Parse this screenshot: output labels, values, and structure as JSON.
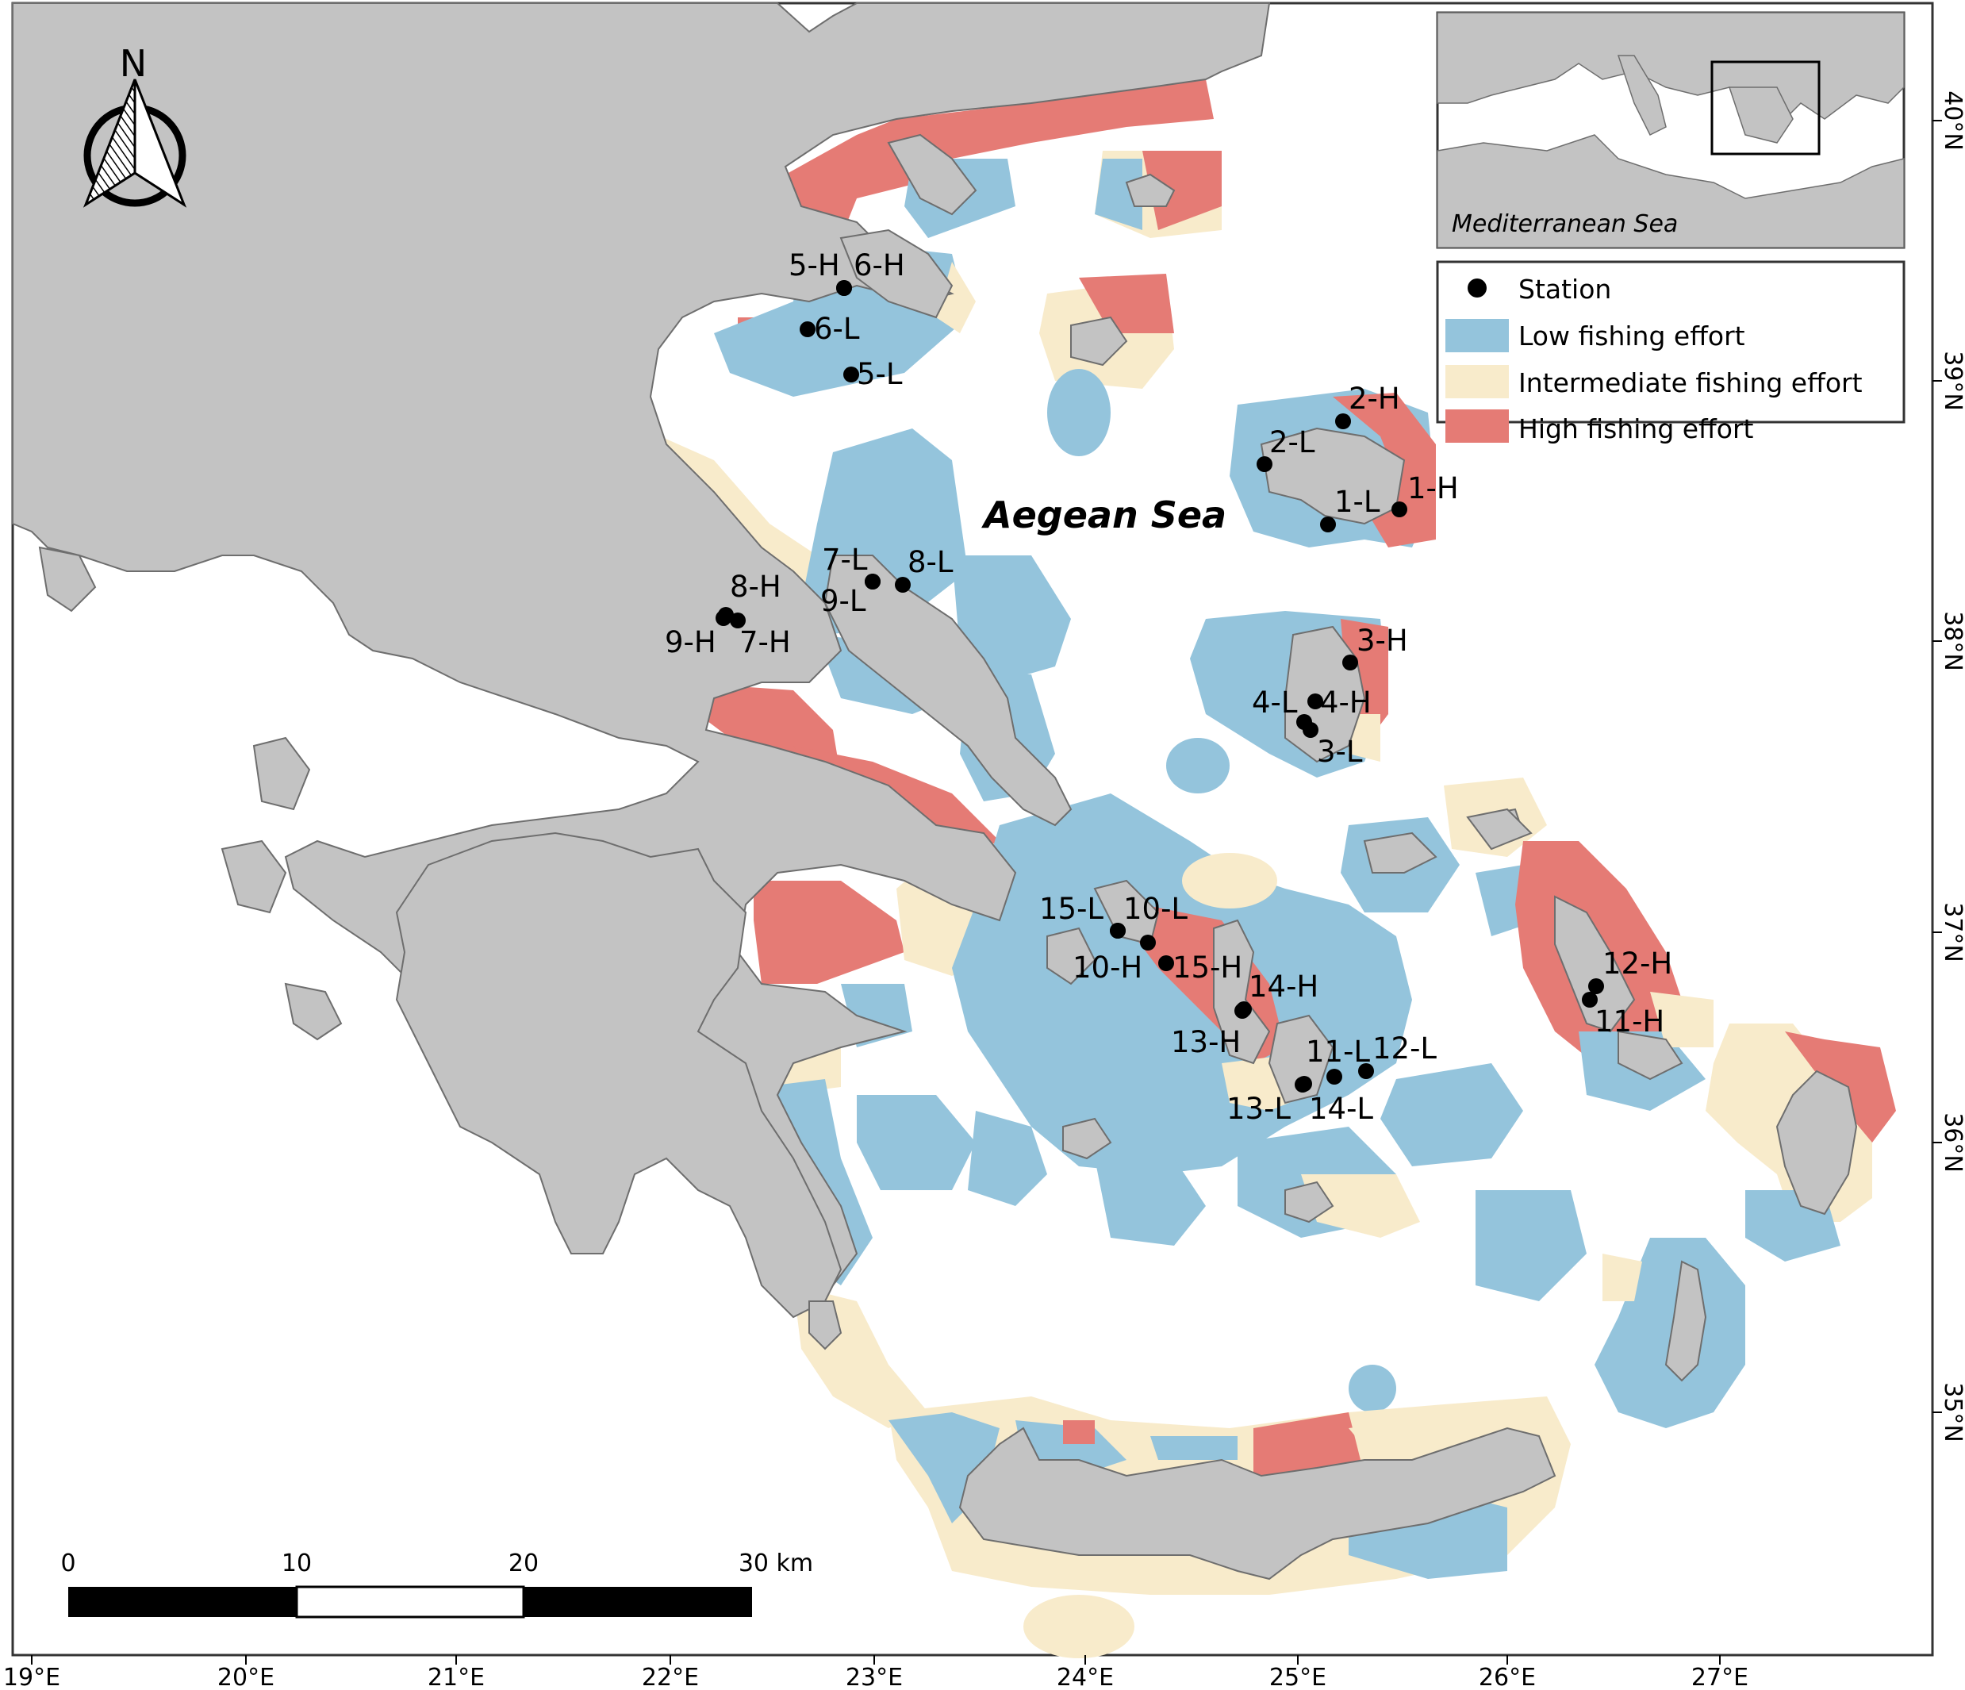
{
  "colors": {
    "land": "#c3c3c3",
    "low": "#94c4dc",
    "intermediate": "#f8ebcb",
    "high": "#e57b75",
    "station": "#000000"
  },
  "map": {
    "sea_label": "Aegean Sea",
    "inset_label": "Mediterranean Sea",
    "north_label": "N"
  },
  "legend": {
    "station": "Station",
    "low": "Low fishing effort",
    "intermediate": "Intermediate fishing effort",
    "high": "High fishing effort"
  },
  "scale_bar": {
    "labels": [
      "0",
      "10",
      "20",
      "30 km"
    ]
  },
  "axes": {
    "longitude_ticks": [
      "19°E",
      "20°E",
      "21°E",
      "22°E",
      "23°E",
      "24°E",
      "25°E",
      "26°E",
      "27°E"
    ],
    "latitude_ticks": [
      "40°N",
      "39°N",
      "38°N",
      "37°N",
      "36°N",
      "35°N"
    ]
  },
  "stations": [
    {
      "label": "1-H",
      "effort": "high"
    },
    {
      "label": "1-L",
      "effort": "low"
    },
    {
      "label": "2-H",
      "effort": "high"
    },
    {
      "label": "2-L",
      "effort": "low"
    },
    {
      "label": "3-H",
      "effort": "high"
    },
    {
      "label": "3-L",
      "effort": "low"
    },
    {
      "label": "4-H",
      "effort": "high"
    },
    {
      "label": "4-L",
      "effort": "low"
    },
    {
      "label": "5-H",
      "effort": "high"
    },
    {
      "label": "5-L",
      "effort": "low"
    },
    {
      "label": "6-H",
      "effort": "high"
    },
    {
      "label": "6-L",
      "effort": "low"
    },
    {
      "label": "7-H",
      "effort": "high"
    },
    {
      "label": "7-L",
      "effort": "low"
    },
    {
      "label": "8-H",
      "effort": "high"
    },
    {
      "label": "8-L",
      "effort": "low"
    },
    {
      "label": "9-H",
      "effort": "high"
    },
    {
      "label": "9-L",
      "effort": "low"
    },
    {
      "label": "10-H",
      "effort": "high"
    },
    {
      "label": "10-L",
      "effort": "low"
    },
    {
      "label": "11-H",
      "effort": "high"
    },
    {
      "label": "11-L",
      "effort": "low"
    },
    {
      "label": "12-H",
      "effort": "high"
    },
    {
      "label": "12-L",
      "effort": "low"
    },
    {
      "label": "13-H",
      "effort": "high"
    },
    {
      "label": "13-L",
      "effort": "low"
    },
    {
      "label": "14-H",
      "effort": "high"
    },
    {
      "label": "14-L",
      "effort": "low"
    },
    {
      "label": "15-H",
      "effort": "high"
    },
    {
      "label": "15-L",
      "effort": "low"
    }
  ]
}
